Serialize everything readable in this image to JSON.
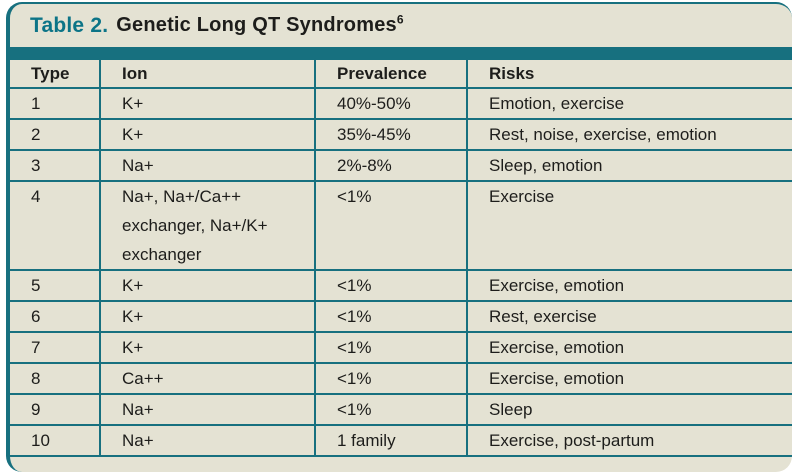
{
  "colors": {
    "teal": "#17707f",
    "title_teal": "#0c7487",
    "cream": "#e4e2d3",
    "text": "#1d1d1b",
    "page": "#ffffff"
  },
  "title": {
    "label": "Table 2.",
    "text": "Genetic Long QT Syndromes",
    "superscript": "6"
  },
  "table": {
    "columns": [
      "Type",
      "Ion",
      "Prevalence",
      "Risks"
    ],
    "rows": [
      {
        "type": "1",
        "ion": "K+",
        "prevalence": "40%-50%",
        "risks": "Emotion, exercise"
      },
      {
        "type": "2",
        "ion": "K+",
        "prevalence": "35%-45%",
        "risks": "Rest, noise, exercise, emotion"
      },
      {
        "type": "3",
        "ion": "Na+",
        "prevalence": "2%-8%",
        "risks": "Sleep, emotion"
      },
      {
        "type": "4",
        "ion": "Na+, Na+/Ca++ exchanger, Na+/K+ exchanger",
        "prevalence": "<1%",
        "risks": "Exercise"
      },
      {
        "type": "5",
        "ion": "K+",
        "prevalence": "<1%",
        "risks": "Exercise, emotion"
      },
      {
        "type": "6",
        "ion": "K+",
        "prevalence": "<1%",
        "risks": "Rest, exercise"
      },
      {
        "type": "7",
        "ion": "K+",
        "prevalence": "<1%",
        "risks": "Exercise, emotion"
      },
      {
        "type": "8",
        "ion": "Ca++",
        "prevalence": "<1%",
        "risks": "Exercise, emotion"
      },
      {
        "type": "9",
        "ion": "Na+",
        "prevalence": "<1%",
        "risks": "Sleep"
      },
      {
        "type": "10",
        "ion": "Na+",
        "prevalence": "1 family",
        "risks": "Exercise, post-partum"
      }
    ]
  }
}
